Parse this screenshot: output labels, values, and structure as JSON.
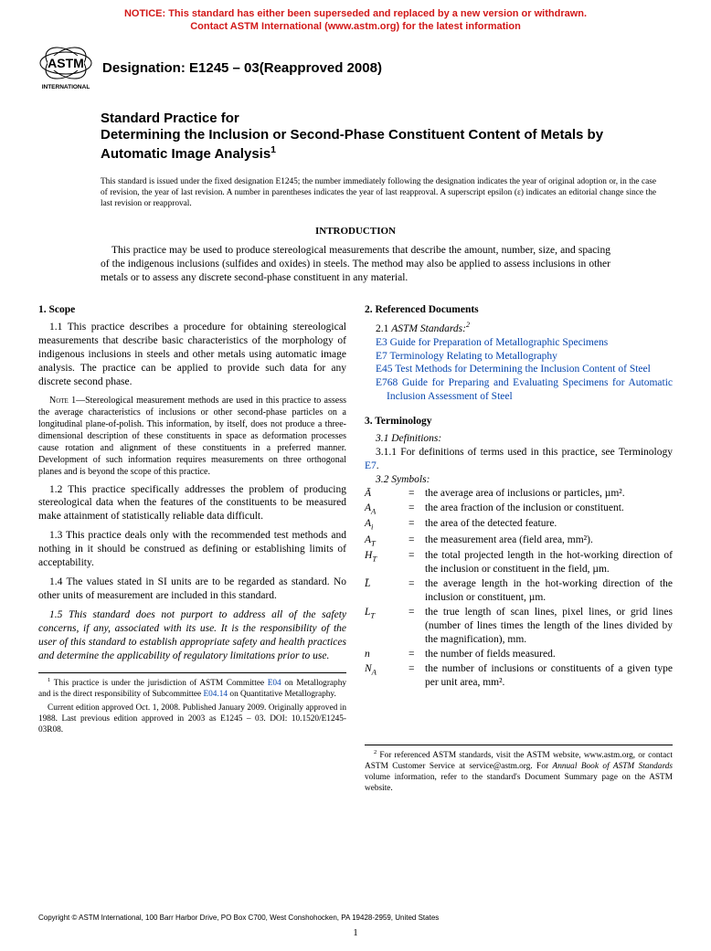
{
  "notice": {
    "line1": "NOTICE: This standard has either been superseded and replaced by a new version or withdrawn.",
    "line2": "Contact ASTM International (www.astm.org) for the latest information",
    "color": "#d21919"
  },
  "logo": {
    "text_top": "INTERNATIONAL"
  },
  "designation": "Designation: E1245 – 03(Reapproved 2008)",
  "title": {
    "prefix": "Standard Practice for",
    "main": "Determining the Inclusion or Second-Phase Constituent Content of Metals by Automatic Image Analysis",
    "sup": "1"
  },
  "issuance": "This standard is issued under the fixed designation E1245; the number immediately following the designation indicates the year of original adoption or, in the case of revision, the year of last revision. A number in parentheses indicates the year of last reapproval. A superscript epsilon (ε) indicates an editorial change since the last revision or reapproval.",
  "intro": {
    "heading": "INTRODUCTION",
    "body": "This practice may be used to produce stereological measurements that describe the amount, number, size, and spacing of the indigenous inclusions (sulfides and oxides) in steels. The method may also be applied to assess inclusions in other metals or to assess any discrete second-phase constituent in any material."
  },
  "colL": {
    "scope_head": "1. Scope",
    "p1_1": "1.1 This practice describes a procedure for obtaining stereological measurements that describe basic characteristics of the morphology of indigenous inclusions in steels and other metals using automatic image analysis. The practice can be applied to provide such data for any discrete second phase.",
    "note1_label": "Note 1—",
    "note1": "Stereological measurement methods are used in this practice to assess the average characteristics of inclusions or other second-phase particles on a longitudinal plane-of-polish. This information, by itself, does not produce a three-dimensional description of these constituents in space as deformation processes cause rotation and alignment of these constituents in a preferred manner. Development of such information requires measurements on three orthogonal planes and is beyond the scope of this practice.",
    "p1_2": "1.2 This practice specifically addresses the problem of producing stereological data when the features of the constituents to be measured make attainment of statistically reliable data difficult.",
    "p1_3": "1.3 This practice deals only with the recommended test methods and nothing in it should be construed as defining or establishing limits of acceptability.",
    "p1_4": "1.4 The values stated in SI units are to be regarded as standard. No other units of measurement are included in this standard.",
    "p1_5": "1.5 This standard does not purport to address all of the safety concerns, if any, associated with its use. It is the responsibility of the user of this standard to establish appropriate safety and health practices and determine the applicability of regulatory limitations prior to use.",
    "fn1_a": " This practice is under the jurisdiction of ASTM Committee ",
    "fn1_link1": "E04",
    "fn1_b": " on Metallography and is the direct responsibility of Subcommittee ",
    "fn1_link2": "E04.14",
    "fn1_c": " on Quantitative Metallography.",
    "fn1_d": "Current edition approved Oct. 1, 2008. Published January 2009. Originally approved in 1988. Last previous edition approved in 2003 as E1245 – 03. DOI: 10.1520/E1245-03R08."
  },
  "colR": {
    "ref_head": "2. Referenced Documents",
    "ref_sub": "2.1 ASTM Standards:",
    "ref_sup": "2",
    "r1_code": "E3",
    "r1_txt": " Guide for Preparation of Metallographic Specimens",
    "r2_code": "E7",
    "r2_txt": " Terminology Relating to Metallography",
    "r3_code": "E45",
    "r3_txt": " Test Methods for Determining the Inclusion Content of Steel",
    "r4_code": "E768",
    "r4_txt": " Guide for Preparing and Evaluating Specimens for Automatic Inclusion Assessment of Steel",
    "term_head": "3. Terminology",
    "p3_1": "3.1 Definitions:",
    "p3_1_1a": "3.1.1 For definitions of terms used in this practice, see Terminology ",
    "p3_1_1_link": "E7",
    "p3_1_1b": ".",
    "p3_2": "3.2 Symbols:",
    "sym": [
      {
        "s": "Ā",
        "d": "the average area of inclusions or particles, µm²."
      },
      {
        "s": "Aₐ",
        "raw": "A",
        "sub": "A",
        "d": "the area fraction of the inclusion or constituent."
      },
      {
        "s": "Aᵢ",
        "raw": "A",
        "sub": "i",
        "d": "the area of the detected feature."
      },
      {
        "s": "Aₜ",
        "raw": "A",
        "sub": "T",
        "d": "the measurement area (field area, mm²)."
      },
      {
        "s": "Hₜ",
        "raw": "H",
        "sub": "T",
        "d": "the total projected length in the hot-working direction of the inclusion or constituent in the field, µm."
      },
      {
        "s": "L̄",
        "d": "the average length in the hot-working direction of the inclusion or constituent, µm."
      },
      {
        "s": "Lₜ",
        "raw": "L",
        "sub": "T",
        "d": "the true length of scan lines, pixel lines, or grid lines (number of lines times the length of the lines divided by the magnification), mm."
      },
      {
        "s": "n",
        "d": "the number of fields measured."
      },
      {
        "s": "Nₐ",
        "raw": "N",
        "sub": "A",
        "d": "the number of inclusions or constituents of a given type per unit area, mm²."
      }
    ],
    "fn2_a": " For referenced ASTM standards, visit the ASTM website, www.astm.org, or contact ASTM Customer Service at service@astm.org. For ",
    "fn2_i": "Annual Book of ASTM Standards",
    "fn2_b": " volume information, refer to the standard's Document Summary page on the ASTM website."
  },
  "copyright": "Copyright © ASTM International, 100 Barr Harbor Drive, PO Box C700, West Conshohocken, PA 19428-2959, United States",
  "pagenum": "1"
}
